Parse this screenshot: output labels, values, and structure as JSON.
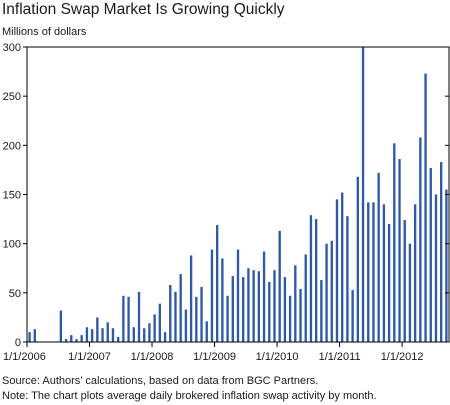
{
  "title": "Inflation Swap Market Is Growing Quickly",
  "unit_label": "Millions of dollars",
  "source_note": "Source: Authors’ calculations, based on data from BGC Partners.",
  "note": "Note: The chart plots average daily brokered inflation swap activity by month.",
  "colors": {
    "bar": "#2f58a8",
    "axis": "#000000",
    "grid": "#d9d9d9"
  },
  "chart_data": {
    "type": "bar",
    "x_is_monthly": true,
    "x_start": "2006-01",
    "ylim": [
      0,
      300
    ],
    "yticks": [
      0,
      50,
      100,
      150,
      200,
      250,
      300
    ],
    "xtick_labels": [
      "1/1/2006",
      "1/1/2007",
      "1/1/2008",
      "1/1/2009",
      "1/1/2010",
      "1/1/2011",
      "1/1/2012"
    ],
    "grid": false,
    "values": [
      10,
      13,
      0,
      0,
      0,
      0,
      32,
      3,
      7,
      3,
      7,
      15,
      13,
      25,
      14,
      20,
      14,
      5,
      47,
      46,
      15,
      51,
      14,
      19,
      28,
      39,
      10,
      58,
      51,
      69,
      33,
      88,
      46,
      56,
      21,
      94,
      119,
      85,
      47,
      67,
      94,
      66,
      75,
      73,
      72,
      92,
      61,
      73,
      113,
      66,
      47,
      78,
      54,
      89,
      129,
      125,
      63,
      100,
      103,
      145,
      152,
      128,
      53,
      168,
      300,
      142,
      142,
      172,
      140,
      120,
      202,
      186,
      124,
      100,
      140,
      208,
      273,
      177,
      150,
      183,
      155
    ]
  }
}
